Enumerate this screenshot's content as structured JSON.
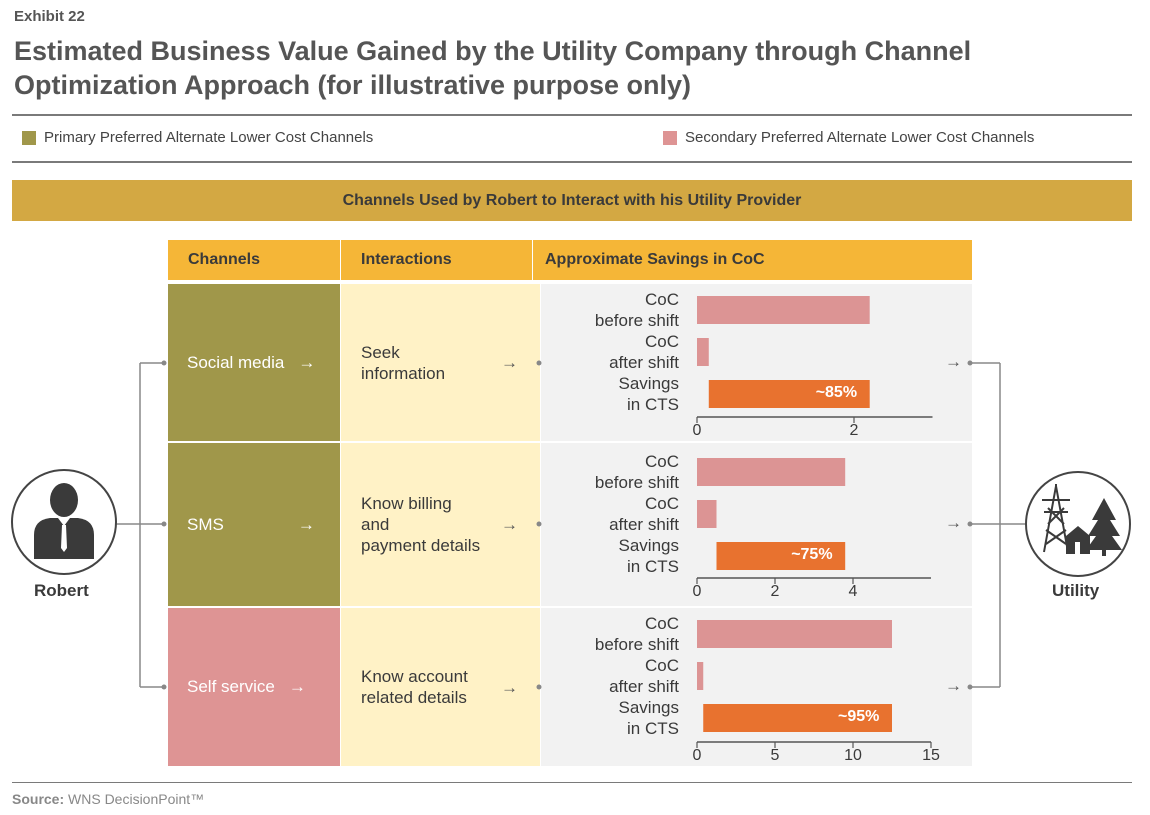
{
  "exhibit": "Exhibit 22",
  "title": "Estimated Business Value Gained by the Utility Company through Channel Optimization Approach (for illustrative purpose only)",
  "legend": {
    "primary": "Primary Preferred Alternate Lower Cost Channels",
    "secondary": "Secondary Preferred Alternate Lower Cost Channels"
  },
  "colors": {
    "primary": "#a0974a",
    "secondary": "#de9494",
    "before_bar": "#dc9494",
    "savings_bar": "#e8722f",
    "banner": "#d3a843",
    "header": "#f5b637"
  },
  "banner": "Channels Used by Robert to Interact with his Utility Provider",
  "headers": {
    "channels": "Channels",
    "interactions": "Interactions",
    "savings": "Approximate Savings in CoC"
  },
  "person_label": "Robert",
  "utility_label": "Utility",
  "rows": [
    {
      "channel": "Social media",
      "interaction": "Seek\ninformation"
    },
    {
      "channel": "SMS",
      "interaction": "Know billing\nand\npayment details"
    },
    {
      "channel": "Self service",
      "interaction": "Know account\nrelated details"
    }
  ],
  "arrow_glyph": "→",
  "chart_data": [
    {
      "type": "bar",
      "orientation": "horizontal",
      "categories": [
        "CoC\nbefore shift",
        "CoC\nafter shift",
        "Savings\nin CTS"
      ],
      "before": 2.2,
      "after": 0.15,
      "savings_label": "~85%",
      "xlim": [
        0,
        3
      ],
      "ticks": [
        0,
        2
      ],
      "tick_labels": [
        "0",
        "2"
      ]
    },
    {
      "type": "bar",
      "orientation": "horizontal",
      "categories": [
        "CoC\nbefore shift",
        "CoC\nafter shift",
        "Savings\nin CTS"
      ],
      "before": 3.8,
      "after": 0.5,
      "savings_label": "~75%",
      "xlim": [
        0,
        6
      ],
      "ticks": [
        0,
        2,
        4
      ],
      "tick_labels": [
        "0",
        "2",
        "4"
      ]
    },
    {
      "type": "bar",
      "orientation": "horizontal",
      "categories": [
        "CoC\nbefore shift",
        "CoC\nafter shift",
        "Savings\nin CTS"
      ],
      "before": 12.5,
      "after": 0.4,
      "savings_label": "~95%",
      "xlim": [
        0,
        15
      ],
      "ticks": [
        0,
        5,
        10,
        15
      ],
      "tick_labels": [
        "0",
        "5",
        "10",
        "15"
      ]
    }
  ],
  "source_label": "Source:",
  "source_text": "WNS DecisionPoint™"
}
